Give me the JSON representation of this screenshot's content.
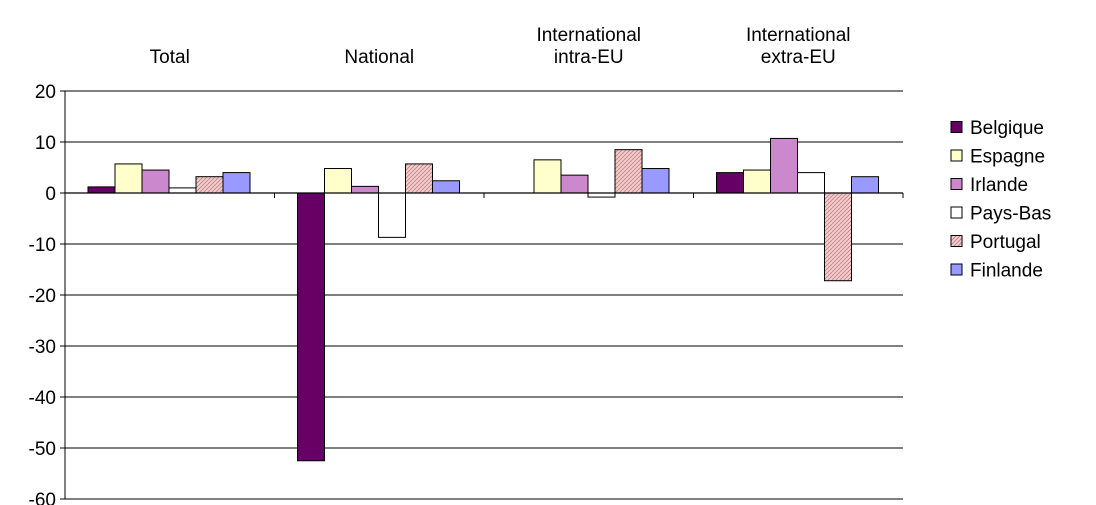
{
  "chart_data": {
    "type": "bar",
    "categories": [
      [
        "Total"
      ],
      [
        "National"
      ],
      [
        "International",
        "intra-EU"
      ],
      [
        "International",
        "extra-EU"
      ]
    ],
    "ylim": [
      -60,
      20
    ],
    "yticks": [
      20,
      10,
      0,
      -10,
      -20,
      -30,
      -40,
      -50,
      -60
    ],
    "grid": true,
    "legend_position": "right",
    "series": [
      {
        "name": "Belgique",
        "color": "#660066",
        "pattern": "solid",
        "values": [
          1.2,
          -52.5,
          null,
          4.0
        ]
      },
      {
        "name": "Espagne",
        "color": "#FFFFCC",
        "pattern": "solid",
        "values": [
          5.7,
          4.8,
          6.5,
          4.5
        ]
      },
      {
        "name": "Irlande",
        "color": "#CC88CC",
        "pattern": "solid",
        "values": [
          4.5,
          1.3,
          3.5,
          10.7
        ]
      },
      {
        "name": "Pays-Bas",
        "color": "#FFFFFF",
        "pattern": "solid",
        "values": [
          1.0,
          -8.7,
          -0.8,
          4.0
        ]
      },
      {
        "name": "Portugal",
        "color": "#F4D0D0",
        "pattern": "hatch",
        "values": [
          3.2,
          5.7,
          8.5,
          -17.2
        ]
      },
      {
        "name": "Finlande",
        "color": "#9999FF",
        "pattern": "solid",
        "values": [
          4.0,
          2.4,
          4.8,
          3.2
        ]
      }
    ]
  }
}
